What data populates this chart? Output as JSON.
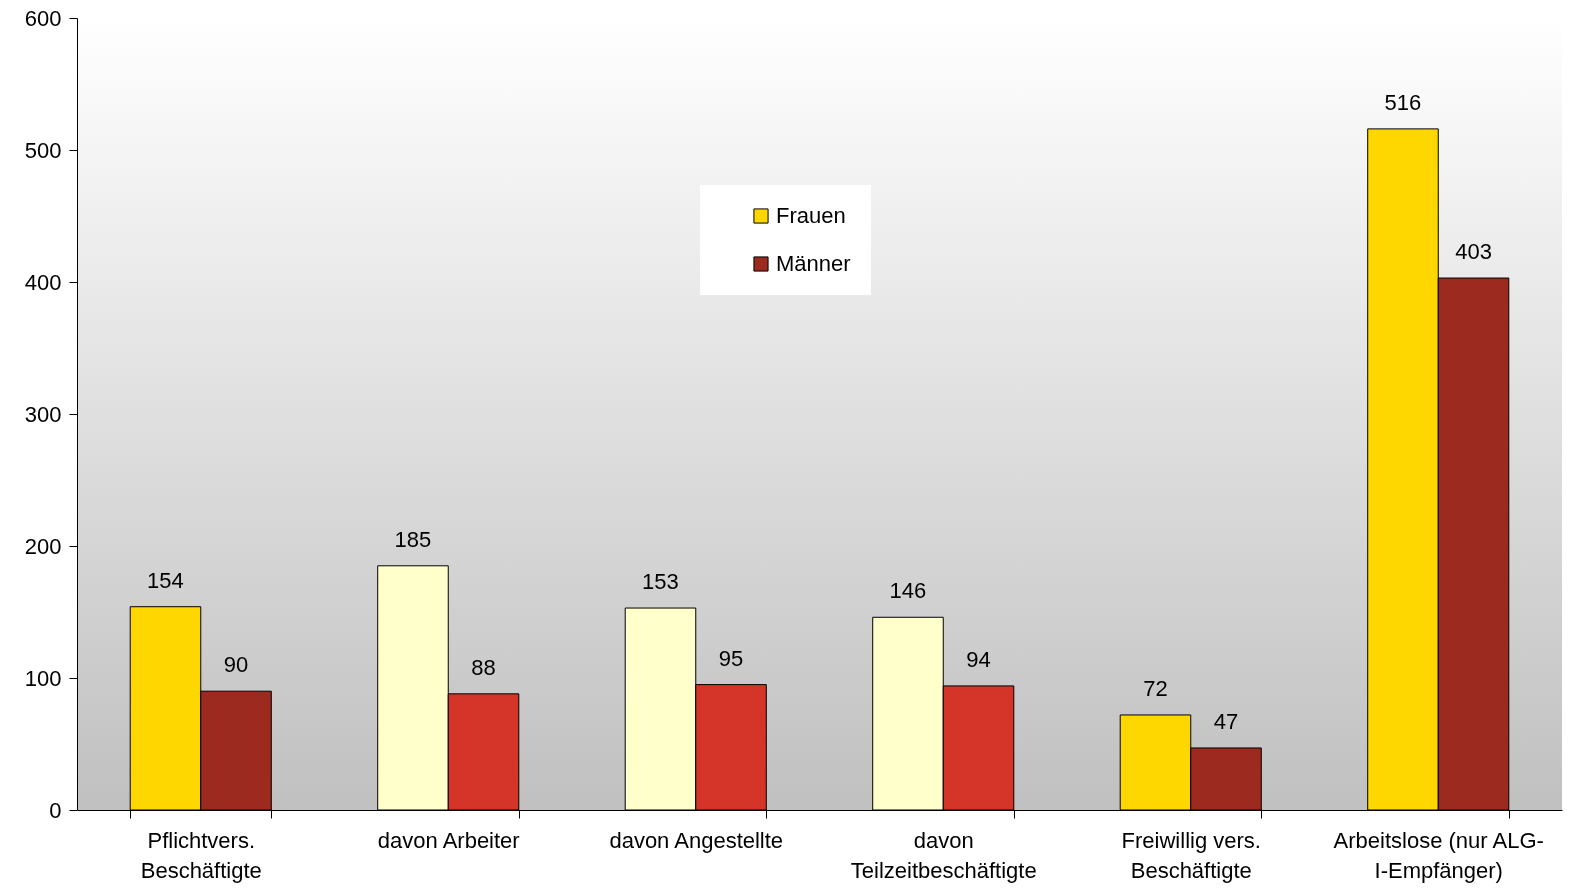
{
  "chart_data": {
    "type": "bar",
    "categories": [
      "Pflichtvers. Beschäftigte",
      "davon Arbeiter",
      "davon Angestellte",
      "davon Teilzeitbeschäftigte",
      "Freiwillig vers. Beschäftigte",
      "Arbeitslose (nur ALG-I-Empfänger)"
    ],
    "series": [
      {
        "name": "Frauen",
        "color": "#ffd700",
        "colors": [
          "#ffd700",
          "#ffffcc",
          "#ffffcc",
          "#ffffcc",
          "#ffd700",
          "#ffd700"
        ],
        "values": [
          154,
          185,
          153,
          146,
          72,
          516
        ]
      },
      {
        "name": "Männer",
        "color": "#9c2a1e",
        "colors": [
          "#9c2a1e",
          "#d43528",
          "#d43528",
          "#d43528",
          "#9c2a1e",
          "#9c2a1e"
        ],
        "values": [
          90,
          88,
          95,
          94,
          47,
          403
        ]
      }
    ],
    "ylim": [
      0,
      600
    ],
    "yticks": [
      0,
      100,
      200,
      300,
      400,
      500,
      600
    ],
    "grid": false,
    "legend": "top",
    "data_labels": true
  }
}
